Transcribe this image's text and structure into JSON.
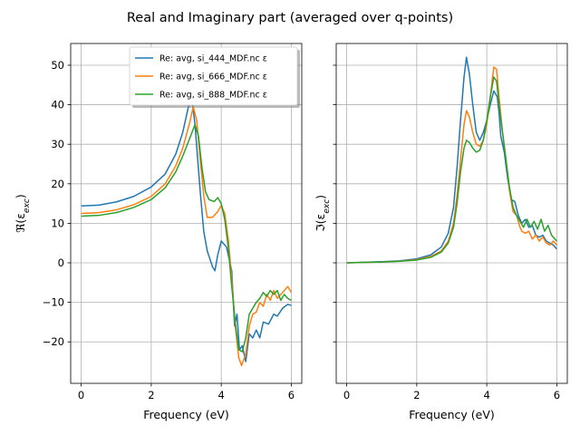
{
  "figure_title": "Real and Imaginary part (averaged over q-points)",
  "colors": {
    "s1": "#1f77b4",
    "s2": "#ff7f0e",
    "s3": "#2ca02c",
    "grid": "#b0b0b0"
  },
  "chart_data": [
    {
      "type": "line",
      "panel": "left",
      "xlabel": "Frequency (eV)",
      "ylabel": "ℜ(ε_exc)",
      "xlim": [
        -0.3,
        6.3
      ],
      "ylim": [
        -30.5,
        55.5
      ],
      "xticks": [
        0,
        2,
        4,
        6
      ],
      "yticks": [
        -20,
        -10,
        0,
        10,
        20,
        30,
        40,
        50
      ],
      "grid": true,
      "legend": {
        "placement": "upper-right",
        "shadow": true
      },
      "series": [
        {
          "name": "Re: avg, si_444_MDF.nc ε",
          "color": "#1f77b4",
          "points": [
            [
              0,
              14.4
            ],
            [
              0.5,
              14.6
            ],
            [
              1.0,
              15.4
            ],
            [
              1.5,
              16.8
            ],
            [
              2.0,
              19.2
            ],
            [
              2.4,
              22.5
            ],
            [
              2.7,
              27.5
            ],
            [
              2.9,
              33.0
            ],
            [
              3.05,
              39.0
            ],
            [
              3.15,
              42.5
            ],
            [
              3.25,
              35.0
            ],
            [
              3.4,
              18.0
            ],
            [
              3.5,
              8.0
            ],
            [
              3.6,
              3.0
            ],
            [
              3.75,
              -1.0
            ],
            [
              3.82,
              -2.0
            ],
            [
              3.9,
              2.0
            ],
            [
              4.0,
              5.5
            ],
            [
              4.15,
              4.0
            ],
            [
              4.3,
              -2.0
            ],
            [
              4.38,
              -16.0
            ],
            [
              4.45,
              -13.0
            ],
            [
              4.52,
              -22.0
            ],
            [
              4.6,
              -21.0
            ],
            [
              4.7,
              -25.0
            ],
            [
              4.8,
              -18.0
            ],
            [
              4.9,
              -19.0
            ],
            [
              5.0,
              -17.0
            ],
            [
              5.1,
              -19.0
            ],
            [
              5.2,
              -15.0
            ],
            [
              5.35,
              -15.5
            ],
            [
              5.5,
              -13.0
            ],
            [
              5.6,
              -13.5
            ],
            [
              5.75,
              -11.5
            ],
            [
              5.9,
              -10.5
            ],
            [
              6.0,
              -10.8
            ]
          ]
        },
        {
          "name": "Re: avg, si_666_MDF.nc ε",
          "color": "#ff7f0e",
          "points": [
            [
              0,
              12.5
            ],
            [
              0.5,
              12.7
            ],
            [
              1.0,
              13.4
            ],
            [
              1.5,
              14.7
            ],
            [
              2.0,
              16.8
            ],
            [
              2.4,
              20.0
            ],
            [
              2.7,
              24.5
            ],
            [
              2.9,
              29.0
            ],
            [
              3.1,
              35.5
            ],
            [
              3.2,
              39.5
            ],
            [
              3.3,
              36.0
            ],
            [
              3.4,
              26.0
            ],
            [
              3.5,
              17.0
            ],
            [
              3.6,
              11.5
            ],
            [
              3.75,
              11.5
            ],
            [
              3.9,
              13.0
            ],
            [
              4.0,
              14.5
            ],
            [
              4.1,
              12.5
            ],
            [
              4.2,
              6.0
            ],
            [
              4.3,
              -4.0
            ],
            [
              4.4,
              -16.0
            ],
            [
              4.5,
              -24.0
            ],
            [
              4.58,
              -26.0
            ],
            [
              4.7,
              -23.0
            ],
            [
              4.8,
              -16.0
            ],
            [
              4.9,
              -13.0
            ],
            [
              5.0,
              -12.5
            ],
            [
              5.1,
              -10.0
            ],
            [
              5.2,
              -11.0
            ],
            [
              5.3,
              -8.0
            ],
            [
              5.4,
              -9.5
            ],
            [
              5.5,
              -7.0
            ],
            [
              5.6,
              -9.0
            ],
            [
              5.75,
              -7.5
            ],
            [
              5.9,
              -6.0
            ],
            [
              6.0,
              -7.5
            ]
          ]
        },
        {
          "name": "Re: avg, si_888_MDF.nc ε",
          "color": "#2ca02c",
          "points": [
            [
              0,
              11.8
            ],
            [
              0.5,
              12.0
            ],
            [
              1.0,
              12.7
            ],
            [
              1.5,
              14.0
            ],
            [
              2.0,
              16.0
            ],
            [
              2.4,
              19.0
            ],
            [
              2.7,
              23.0
            ],
            [
              2.9,
              27.0
            ],
            [
              3.1,
              31.5
            ],
            [
              3.25,
              35.0
            ],
            [
              3.35,
              32.0
            ],
            [
              3.45,
              24.0
            ],
            [
              3.55,
              18.0
            ],
            [
              3.65,
              16.0
            ],
            [
              3.8,
              15.5
            ],
            [
              3.9,
              16.5
            ],
            [
              4.0,
              15.0
            ],
            [
              4.1,
              11.0
            ],
            [
              4.2,
              4.0
            ],
            [
              4.3,
              -6.0
            ],
            [
              4.4,
              -15.0
            ],
            [
              4.5,
              -22.0
            ],
            [
              4.6,
              -22.5
            ],
            [
              4.7,
              -19.0
            ],
            [
              4.8,
              -13.0
            ],
            [
              4.9,
              -11.5
            ],
            [
              5.0,
              -10.0
            ],
            [
              5.1,
              -9.0
            ],
            [
              5.2,
              -7.5
            ],
            [
              5.3,
              -8.5
            ],
            [
              5.4,
              -7.0
            ],
            [
              5.5,
              -8.0
            ],
            [
              5.6,
              -7.0
            ],
            [
              5.7,
              -9.5
            ],
            [
              5.8,
              -8.0
            ],
            [
              5.9,
              -9.0
            ],
            [
              6.0,
              -9.5
            ]
          ]
        }
      ]
    },
    {
      "type": "line",
      "panel": "right",
      "xlabel": "Frequency (eV)",
      "ylabel": "ℑ(ε_exc)",
      "xlim": [
        -0.3,
        6.3
      ],
      "ylim": [
        -30.5,
        55.5
      ],
      "xticks": [
        0,
        2,
        4,
        6
      ],
      "yticks": [
        -20,
        -10,
        0,
        10,
        20,
        30,
        40,
        50
      ],
      "grid": true,
      "series": [
        {
          "name": "Re: avg, si_444_MDF.nc ε",
          "color": "#1f77b4",
          "points": [
            [
              0,
              0
            ],
            [
              1.0,
              0.3
            ],
            [
              1.5,
              0.5
            ],
            [
              2.0,
              1.0
            ],
            [
              2.4,
              2.0
            ],
            [
              2.7,
              4.0
            ],
            [
              2.9,
              7.5
            ],
            [
              3.05,
              14.0
            ],
            [
              3.15,
              24.0
            ],
            [
              3.25,
              36.0
            ],
            [
              3.35,
              47.0
            ],
            [
              3.42,
              52.0
            ],
            [
              3.5,
              48.0
            ],
            [
              3.6,
              40.0
            ],
            [
              3.7,
              33.0
            ],
            [
              3.8,
              31.0
            ],
            [
              3.9,
              33.0
            ],
            [
              4.0,
              36.0
            ],
            [
              4.1,
              40.0
            ],
            [
              4.2,
              43.5
            ],
            [
              4.3,
              42.0
            ],
            [
              4.35,
              38.0
            ],
            [
              4.4,
              32.0
            ],
            [
              4.5,
              28.0
            ],
            [
              4.6,
              21.0
            ],
            [
              4.7,
              16.0
            ],
            [
              4.8,
              15.5
            ],
            [
              4.9,
              12.0
            ],
            [
              5.0,
              10.0
            ],
            [
              5.1,
              11.0
            ],
            [
              5.2,
              9.0
            ],
            [
              5.3,
              9.5
            ],
            [
              5.4,
              7.0
            ],
            [
              5.5,
              6.5
            ],
            [
              5.6,
              7.0
            ],
            [
              5.7,
              5.5
            ],
            [
              5.8,
              5.0
            ],
            [
              5.9,
              4.5
            ],
            [
              6.0,
              3.5
            ]
          ]
        },
        {
          "name": "Re: avg, si_666_MDF.nc ε",
          "color": "#ff7f0e",
          "points": [
            [
              0,
              0
            ],
            [
              1.0,
              0.2
            ],
            [
              1.5,
              0.4
            ],
            [
              2.0,
              0.8
            ],
            [
              2.4,
              1.6
            ],
            [
              2.7,
              3.0
            ],
            [
              2.9,
              5.5
            ],
            [
              3.05,
              10.0
            ],
            [
              3.15,
              17.0
            ],
            [
              3.25,
              26.0
            ],
            [
              3.35,
              35.0
            ],
            [
              3.42,
              38.5
            ],
            [
              3.5,
              37.0
            ],
            [
              3.6,
              33.0
            ],
            [
              3.7,
              30.0
            ],
            [
              3.8,
              29.5
            ],
            [
              3.9,
              31.0
            ],
            [
              4.0,
              35.0
            ],
            [
              4.1,
              42.0
            ],
            [
              4.2,
              49.5
            ],
            [
              4.28,
              49.0
            ],
            [
              4.35,
              42.0
            ],
            [
              4.45,
              33.0
            ],
            [
              4.55,
              26.0
            ],
            [
              4.65,
              18.0
            ],
            [
              4.75,
              13.0
            ],
            [
              4.85,
              12.0
            ],
            [
              4.95,
              9.0
            ],
            [
              5.0,
              8.0
            ],
            [
              5.1,
              7.5
            ],
            [
              5.2,
              8.0
            ],
            [
              5.3,
              6.0
            ],
            [
              5.4,
              7.0
            ],
            [
              5.5,
              5.5
            ],
            [
              5.6,
              6.5
            ],
            [
              5.7,
              5.0
            ],
            [
              5.8,
              4.5
            ],
            [
              5.9,
              5.5
            ],
            [
              6.0,
              4.5
            ]
          ]
        },
        {
          "name": "Re: avg, si_888_MDF.nc ε",
          "color": "#2ca02c",
          "points": [
            [
              0,
              0
            ],
            [
              1.0,
              0.2
            ],
            [
              1.5,
              0.4
            ],
            [
              2.0,
              0.7
            ],
            [
              2.4,
              1.4
            ],
            [
              2.7,
              2.7
            ],
            [
              2.9,
              5.0
            ],
            [
              3.05,
              9.0
            ],
            [
              3.15,
              15.0
            ],
            [
              3.25,
              23.0
            ],
            [
              3.35,
              29.0
            ],
            [
              3.42,
              31.0
            ],
            [
              3.5,
              30.5
            ],
            [
              3.6,
              29.0
            ],
            [
              3.7,
              28.0
            ],
            [
              3.8,
              28.5
            ],
            [
              3.9,
              31.0
            ],
            [
              4.0,
              36.0
            ],
            [
              4.1,
              42.0
            ],
            [
              4.2,
              47.0
            ],
            [
              4.28,
              46.0
            ],
            [
              4.35,
              40.0
            ],
            [
              4.45,
              33.0
            ],
            [
              4.55,
              26.0
            ],
            [
              4.65,
              19.0
            ],
            [
              4.75,
              14.0
            ],
            [
              4.85,
              12.0
            ],
            [
              4.95,
              10.5
            ],
            [
              5.05,
              9.0
            ],
            [
              5.15,
              11.0
            ],
            [
              5.25,
              9.0
            ],
            [
              5.35,
              10.5
            ],
            [
              5.45,
              8.5
            ],
            [
              5.55,
              11.0
            ],
            [
              5.65,
              8.0
            ],
            [
              5.75,
              9.5
            ],
            [
              5.85,
              7.0
            ],
            [
              5.95,
              6.0
            ],
            [
              6.0,
              5.5
            ]
          ]
        }
      ]
    }
  ]
}
